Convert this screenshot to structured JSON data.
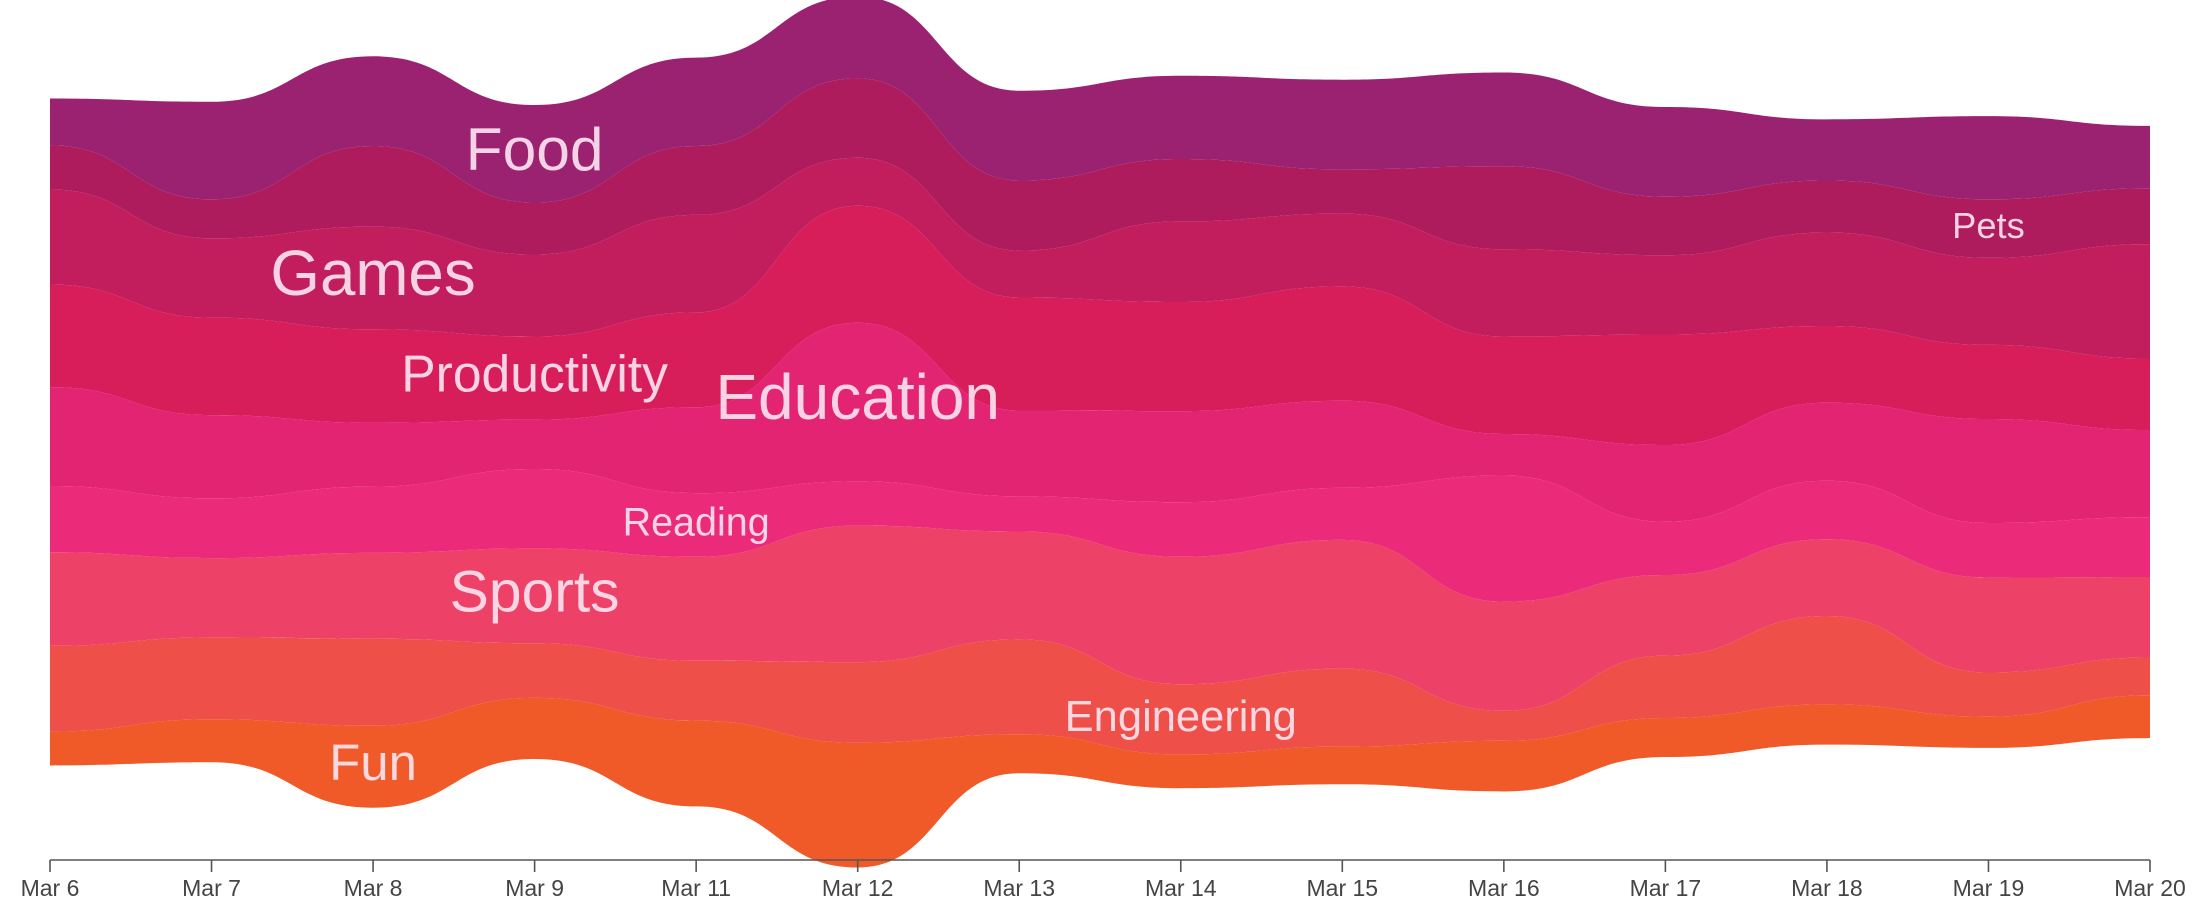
{
  "chart_data": {
    "type": "area",
    "subtype": "streamgraph",
    "grid": false,
    "legend": "none",
    "x_ticks": [
      "Mar 6",
      "Mar 7",
      "Mar 8",
      "Mar 9",
      "Mar 11",
      "Mar 12",
      "Mar 13",
      "Mar 14",
      "Mar 15",
      "Mar 16",
      "Mar 17",
      "Mar 18",
      "Mar 19",
      "Mar 20"
    ],
    "series": [
      {
        "name": "Fun",
        "color": "#f05a28",
        "label_at": 2,
        "values": [
          2.6,
          3.3,
          6.3,
          4.7,
          6.6,
          9.6,
          3.0,
          2.6,
          2.9,
          3.9,
          3.0,
          3.1,
          2.4,
          3.3
        ]
      },
      {
        "name": "Engineering",
        "color": "#ee4f48",
        "label_at": 7,
        "values": [
          6.6,
          6.3,
          6.7,
          4.2,
          4.6,
          6.2,
          7.3,
          5.4,
          6.0,
          2.3,
          4.8,
          6.8,
          3.4,
          2.9
        ]
      },
      {
        "name": "Sports",
        "color": "#ed4168",
        "label_at": 3,
        "values": [
          7.2,
          6.1,
          6.6,
          7.3,
          8.0,
          10.5,
          8.3,
          9.8,
          9.9,
          8.4,
          6.2,
          5.9,
          7.3,
          6.2
        ]
      },
      {
        "name": "Reading",
        "color": "#ec2a7a",
        "label_at": 4,
        "values": [
          5.1,
          4.6,
          5.1,
          6.1,
          4.9,
          3.4,
          2.7,
          4.2,
          4.0,
          9.7,
          4.1,
          4.5,
          4.2,
          4.6
        ]
      },
      {
        "name": "Education",
        "color": "#e22472",
        "label_at": 5,
        "values": [
          7.6,
          6.4,
          4.9,
          3.8,
          6.6,
          12.2,
          6.6,
          7.0,
          6.7,
          3.2,
          5.9,
          6.0,
          8.0,
          6.7
        ]
      },
      {
        "name": "Productivity",
        "color": "#d81d5b",
        "label_at": 3,
        "values": [
          7.9,
          7.5,
          7.2,
          6.4,
          7.3,
          9.0,
          8.7,
          8.4,
          8.8,
          7.5,
          8.5,
          5.9,
          5.7,
          5.5
        ]
      },
      {
        "name": "Games",
        "color": "#c21d5d",
        "label_at": 2,
        "values": [
          7.3,
          6.1,
          7.9,
          6.3,
          7.5,
          3.7,
          3.6,
          6.2,
          5.6,
          6.7,
          6.1,
          7.2,
          6.7,
          8.8
        ]
      },
      {
        "name": "Pets",
        "color": "#ae1c5e",
        "label_at": 12,
        "values": [
          3.4,
          3.0,
          6.2,
          4.0,
          5.3,
          6.1,
          5.4,
          4.8,
          3.4,
          6.4,
          4.5,
          4.0,
          4.5,
          4.3
        ]
      },
      {
        "name": "Food",
        "color": "#9a2271",
        "label_at": 3,
        "values": [
          3.6,
          7.5,
          6.9,
          7.5,
          6.8,
          6.3,
          6.9,
          6.4,
          6.9,
          7.2,
          6.9,
          4.7,
          6.4,
          4.8
        ]
      }
    ]
  }
}
